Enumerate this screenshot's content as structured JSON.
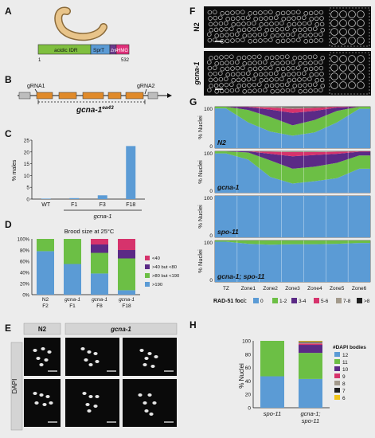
{
  "panels": [
    "A",
    "B",
    "C",
    "D",
    "E",
    "F",
    "G",
    "H"
  ],
  "panel_a": {
    "domains": [
      "acidic IDR",
      "SprT",
      "ZnF",
      "HMG"
    ],
    "start": "1",
    "end": "532",
    "colors": {
      "acidic_idr": "#7fbf3f",
      "sprt": "#5b9bd5",
      "znf": "#6a3a8c",
      "hmg": "#e0307a",
      "worm": "#e8c48a"
    }
  },
  "panel_b": {
    "grna1": "gRNA1",
    "grna2": "gRNA2",
    "allele_base": "gcna-1",
    "allele_sup": "ea43",
    "exon_color": "#e08a2a"
  },
  "panel_c": {
    "ylabel": "% males",
    "yticks": [
      "0",
      "5",
      "10",
      "15",
      "20",
      "25"
    ],
    "group_label": "gcna-1"
  },
  "panel_d": {
    "title": "Brood size at 25°C",
    "yticks": [
      "0%",
      "20%",
      "40%",
      "60%",
      "80%",
      "100%"
    ],
    "xlabels": [
      [
        "N2",
        "F2"
      ],
      [
        "gcna-1",
        "F1"
      ],
      [
        "gcna-1",
        "F8"
      ],
      [
        "gcna-1",
        "F18"
      ]
    ],
    "legend": [
      "<40",
      ">40 but <80",
      ">80 but <190",
      ">190"
    ]
  },
  "panel_e": {
    "ylabel": "DAPI",
    "header_left": "N2",
    "header_right": "gcna-1"
  },
  "panel_f": {
    "row1": "N2",
    "row2": "gcna-1"
  },
  "panel_g": {
    "ylabel": "% Nuclei",
    "ytick_top": "100",
    "ytick_bottom": "0",
    "zones": [
      "TZ",
      "Zone1",
      "Zone2",
      "Zone3",
      "Zone4",
      "Zone5",
      "Zone6"
    ],
    "legend_title": "RAD-51 foci:",
    "legend": [
      "0",
      "1-2",
      "3-4",
      "5-6",
      "7-8",
      ">8"
    ]
  },
  "panel_h": {
    "ylabel": "% Nuclei",
    "yticks": [
      "0",
      "20",
      "40",
      "60",
      "80",
      "100"
    ],
    "legend_title": "#DAPI bodies",
    "legend": [
      "12",
      "11",
      "10",
      "9",
      "8",
      "7",
      "6"
    ],
    "xlabels": [
      [
        "spo-11"
      ],
      [
        "gcna-1;",
        "spo-11"
      ]
    ]
  },
  "chart_data": [
    {
      "panel": "C",
      "type": "bar",
      "categories": [
        "WT",
        "F1",
        "F3",
        "F18"
      ],
      "values": [
        0.2,
        0.4,
        1.6,
        22.5
      ],
      "ylabel": "% males",
      "ylim": [
        0,
        25
      ],
      "color": "#5b9bd5"
    },
    {
      "panel": "D",
      "type": "bar",
      "stacked": true,
      "title": "Brood size at 25°C",
      "categories": [
        "N2 F2",
        "gcna-1 F1",
        "gcna-1 F8",
        "gcna-1 F18"
      ],
      "ylim": [
        0,
        100
      ],
      "series": [
        {
          "name": ">190",
          "color": "#5b9bd5",
          "values": [
            78,
            55,
            38,
            8
          ]
        },
        {
          "name": ">80 but <190",
          "color": "#6cbf45",
          "values": [
            22,
            45,
            37,
            57
          ]
        },
        {
          "name": ">40 but <80",
          "color": "#5b2a86",
          "values": [
            0,
            0,
            15,
            15
          ]
        },
        {
          "name": "<40",
          "color": "#d6336c",
          "values": [
            0,
            0,
            10,
            20
          ]
        }
      ]
    },
    {
      "panel": "G",
      "type": "area",
      "stacked": true,
      "ylabel": "% Nuclei",
      "x": [
        "TZ",
        "Zone1",
        "Zone2",
        "Zone3",
        "Zone4",
        "Zone5",
        "Zone6"
      ],
      "ylim": [
        0,
        100
      ],
      "rows": [
        {
          "label": "N2",
          "series": [
            {
              "name": "0",
              "values": [
                96,
                62,
                40,
                30,
                38,
                62,
                95
              ]
            },
            {
              "name": "1-2",
              "values": [
                4,
                30,
                35,
                25,
                30,
                28,
                5
              ]
            },
            {
              "name": "3-4",
              "values": [
                0,
                7,
                18,
                30,
                22,
                8,
                0
              ]
            },
            {
              "name": "5-6",
              "values": [
                0,
                1,
                5,
                10,
                7,
                2,
                0
              ]
            },
            {
              "name": "7-8",
              "values": [
                0,
                0,
                2,
                4,
                2,
                0,
                0
              ]
            },
            {
              "name": ">8",
              "values": [
                0,
                0,
                0,
                1,
                1,
                0,
                0
              ]
            }
          ]
        },
        {
          "label": "gcna-1",
          "series": [
            {
              "name": "0",
              "values": [
                95,
                80,
                38,
                22,
                28,
                35,
                58
              ]
            },
            {
              "name": "1-2",
              "values": [
                5,
                17,
                40,
                36,
                35,
                37,
                32
              ]
            },
            {
              "name": "3-4",
              "values": [
                0,
                3,
                16,
                30,
                28,
                22,
                9
              ]
            },
            {
              "name": "5-6",
              "values": [
                0,
                0,
                5,
                10,
                7,
                5,
                1
              ]
            },
            {
              "name": "7-8",
              "values": [
                0,
                0,
                1,
                2,
                2,
                1,
                0
              ]
            },
            {
              "name": ">8",
              "values": [
                0,
                0,
                0,
                0,
                0,
                0,
                0
              ]
            }
          ]
        },
        {
          "label": "spo-11",
          "series": [
            {
              "name": "0",
              "values": [
                100,
                100,
                100,
                100,
                100,
                100,
                100
              ]
            },
            {
              "name": "1-2",
              "values": [
                0,
                0,
                0,
                0,
                0,
                0,
                0
              ]
            },
            {
              "name": "3-4",
              "values": [
                0,
                0,
                0,
                0,
                0,
                0,
                0
              ]
            },
            {
              "name": "5-6",
              "values": [
                0,
                0,
                0,
                0,
                0,
                0,
                0
              ]
            },
            {
              "name": "7-8",
              "values": [
                0,
                0,
                0,
                0,
                0,
                0,
                0
              ]
            },
            {
              "name": ">8",
              "values": [
                0,
                0,
                0,
                0,
                0,
                0,
                0
              ]
            }
          ]
        },
        {
          "label": "gcna-1; spo-11",
          "series": [
            {
              "name": "0",
              "values": [
                97,
                92,
                90,
                91,
                91,
                92,
                94
              ]
            },
            {
              "name": "1-2",
              "values": [
                3,
                8,
                10,
                9,
                9,
                8,
                6
              ]
            },
            {
              "name": "3-4",
              "values": [
                0,
                0,
                0,
                0,
                0,
                0,
                0
              ]
            },
            {
              "name": "5-6",
              "values": [
                0,
                0,
                0,
                0,
                0,
                0,
                0
              ]
            },
            {
              "name": "7-8",
              "values": [
                0,
                0,
                0,
                0,
                0,
                0,
                0
              ]
            },
            {
              "name": ">8",
              "values": [
                0,
                0,
                0,
                0,
                0,
                0,
                0
              ]
            }
          ]
        }
      ],
      "colors": [
        "#5b9bd5",
        "#6cbf45",
        "#5b2a86",
        "#d6336c",
        "#a39a8c",
        "#1f1f1f"
      ]
    },
    {
      "panel": "H",
      "type": "bar",
      "stacked": true,
      "ylabel": "% Nuclei",
      "categories": [
        "spo-11",
        "gcna-1; spo-11"
      ],
      "ylim": [
        0,
        100
      ],
      "series": [
        {
          "name": "12",
          "color": "#5b9bd5",
          "values": [
            47,
            43
          ]
        },
        {
          "name": "11",
          "color": "#6cbf45",
          "values": [
            53,
            39
          ]
        },
        {
          "name": "10",
          "color": "#5b2a86",
          "values": [
            0,
            12
          ]
        },
        {
          "name": "9",
          "color": "#d6336c",
          "values": [
            0,
            2
          ]
        },
        {
          "name": "8",
          "color": "#a39a8c",
          "values": [
            0,
            2
          ]
        },
        {
          "name": "7",
          "color": "#1f1f1f",
          "values": [
            0,
            1
          ]
        },
        {
          "name": "6",
          "color": "#f0c419",
          "values": [
            0,
            1
          ]
        }
      ]
    }
  ]
}
